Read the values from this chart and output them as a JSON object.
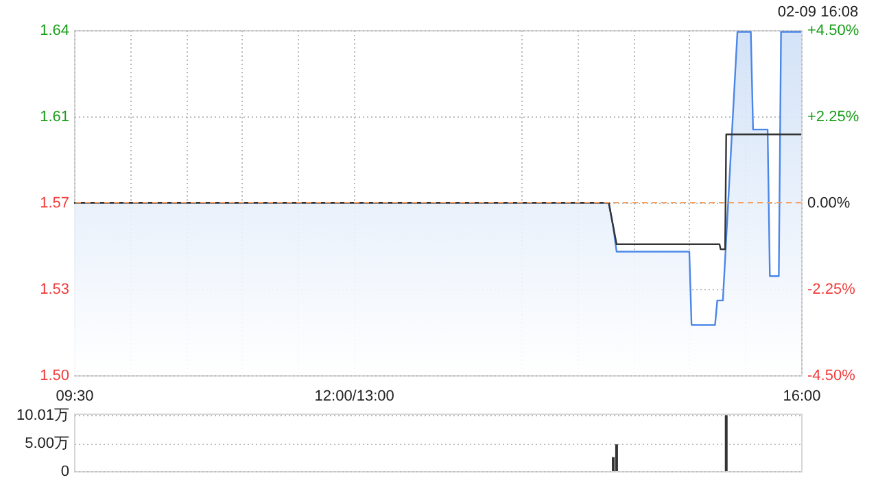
{
  "chart_data": [
    {
      "type": "line",
      "annotations": [
        "02-09 16:08"
      ],
      "xlim": [
        9.5,
        16
      ],
      "xticks": [
        9.5,
        10,
        10.5,
        11,
        11.5,
        12,
        13.5,
        14,
        14.5,
        15,
        15.5,
        16
      ],
      "tick_labels": "y",
      "ylim": [
        1.4994,
        1.6407
      ],
      "yticks": [
        {
          "value": 1.4994,
          "label": "1.50"
        },
        {
          "value": 1.5347,
          "label": "1.53"
        },
        1.57,
        {
          "value": 1.6054,
          "label": "1.61"
        },
        {
          "value": 1.6407,
          "label": "1.64"
        }
      ],
      "y2lim": [
        -4.5,
        4.5
      ],
      "y2ticks": [
        {
          "value": -4.5,
          "label": "-4.50%"
        },
        {
          "value": -2.25,
          "label": "-2.25%"
        },
        {
          "value": 0,
          "label": "0.00%"
        },
        {
          "value": 2.25,
          "label": "+2.25%"
        },
        {
          "value": 4.5,
          "label": "+4.50%"
        }
      ],
      "grid": true,
      "ref_lines": [
        {
          "axis": "y2",
          "value": 0,
          "color": "#f5a061",
          "line_style": "dashed"
        }
      ],
      "series": [
        {
          "type": "area",
          "color": "#4a86e8",
          "x": [
            9.5,
            14.28,
            14.32,
            14.35,
            15.0,
            15.02,
            15.23,
            15.25,
            15.3,
            15.43,
            15.55,
            15.57,
            15.7,
            15.72,
            15.8,
            15.82,
            16
          ],
          "values": [
            1.57,
            1.57,
            1.56,
            1.55,
            1.55,
            1.52,
            1.52,
            1.53,
            1.53,
            1.64,
            1.64,
            1.6,
            1.6,
            1.54,
            1.54,
            1.64,
            1.64
          ]
        },
        {
          "type": "line",
          "color": "#333333",
          "x": [
            9.5,
            14.28,
            14.35,
            15.27,
            15.28,
            15.32,
            15.33,
            16
          ],
          "values": [
            1.57,
            1.57,
            1.553,
            1.553,
            1.551,
            1.551,
            1.598,
            1.598
          ]
        }
      ]
    },
    {
      "type": "bar",
      "x": [
        14.32,
        14.35,
        15.33
      ],
      "values": [
        2.5,
        4.8,
        10.01
      ],
      "color": "#333333",
      "xlim": [
        9.5,
        16
      ],
      "xticks": [
        {
          "value": 9.5,
          "label": "09:30"
        },
        {
          "value": 12,
          "label": "12:00/13:00"
        },
        {
          "value": 16,
          "label": "16:00"
        }
      ],
      "ylim": [
        0,
        10.3
      ],
      "yticks": [
        0,
        {
          "value": 5,
          "label": "5.00万"
        },
        {
          "value": 10.01,
          "label": "10.01万"
        }
      ],
      "grid": "y"
    }
  ]
}
